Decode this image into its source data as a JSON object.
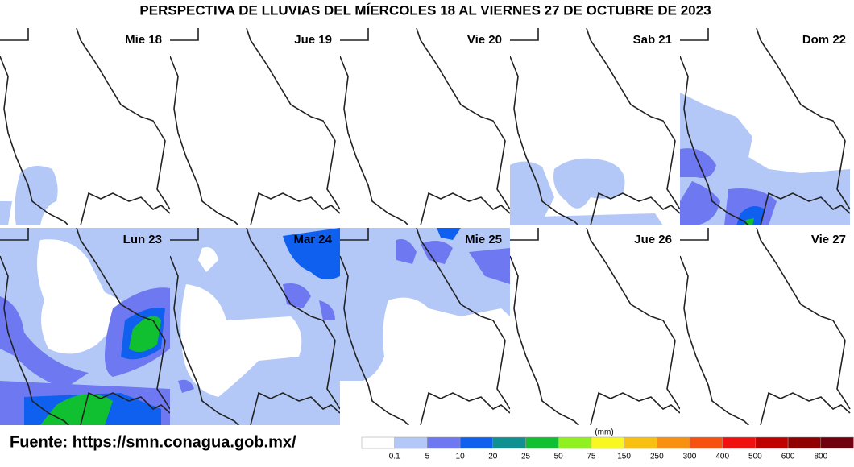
{
  "title": "PERSPECTIVA DE LLUVIAS DEL MÍERCOLES 18 AL VIERNES 27 DE OCTUBRE DE 2023",
  "panels": [
    {
      "label": "Mie 18"
    },
    {
      "label": "Jue 19"
    },
    {
      "label": "Vie 20"
    },
    {
      "label": "Sab 21"
    },
    {
      "label": "Dom 22"
    },
    {
      "label": "Lun 23"
    },
    {
      "label": "Mar 24"
    },
    {
      "label": "Mie 25"
    },
    {
      "label": "Jue 26"
    },
    {
      "label": "Vie 27"
    }
  ],
  "source": "Fuente: https://smn.conagua.gob.mx/",
  "legend": {
    "unit": "(mm)",
    "labels": [
      "0.1",
      "5",
      "10",
      "20",
      "25",
      "50",
      "75",
      "150",
      "250",
      "300",
      "400",
      "500",
      "600",
      "800"
    ]
  }
}
